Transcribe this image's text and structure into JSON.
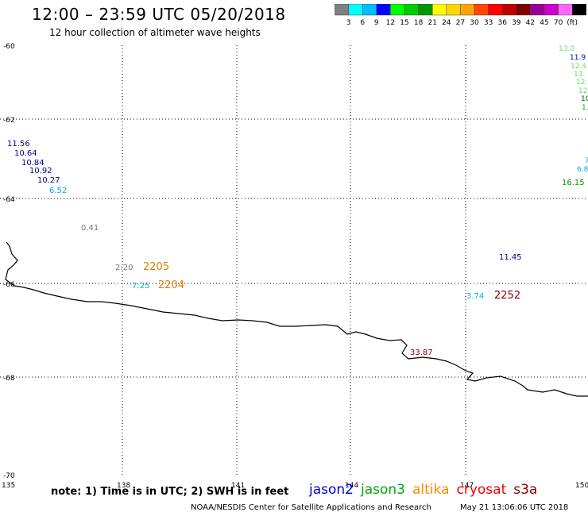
{
  "title": "12:00 – 23:59 UTC 05/20/2018",
  "subtitle": "12 hour collection of altimeter wave heights",
  "legend": {
    "colors": [
      "#808080",
      "#00ffff",
      "#00bfff",
      "#0000ff",
      "#00ff00",
      "#00cc00",
      "#009900",
      "#ffff00",
      "#ffd700",
      "#ffa500",
      "#ff4500",
      "#ff0000",
      "#c00000",
      "#800000",
      "#990099",
      "#cc00cc",
      "#ff66ff",
      "#000000"
    ],
    "labels": [
      "3",
      "6",
      "9",
      "12",
      "15",
      "18",
      "21",
      "24",
      "27",
      "30",
      "33",
      "36",
      "39",
      "42",
      "45",
      "70",
      "(ft)"
    ]
  },
  "axes": {
    "lat_labels": [
      "-60",
      "-62",
      "-64",
      "-66",
      "-68",
      "-70"
    ],
    "lon_labels": [
      "135",
      "138",
      "141",
      "144",
      "147",
      "150"
    ]
  },
  "observations": [
    {
      "text": "13.0",
      "color": "#66dd66"
    },
    {
      "text": "11.9",
      "color": "#0000cc"
    },
    {
      "text": "12.4",
      "color": "#66dd66"
    },
    {
      "text": "13.",
      "color": "#66dd66"
    },
    {
      "text": "12.",
      "color": "#66dd66"
    },
    {
      "text": "12",
      "color": "#66dd66"
    },
    {
      "text": "10",
      "color": "#006600"
    },
    {
      "text": "1.",
      "color": "#00aa00"
    },
    {
      "text": "11.56",
      "color": "#00008b"
    },
    {
      "text": "10.64",
      "color": "#00008b"
    },
    {
      "text": "10.84",
      "color": "#00008b"
    },
    {
      "text": "10.92",
      "color": "#00008b"
    },
    {
      "text": "10.27",
      "color": "#00008b"
    },
    {
      "text": "6.52",
      "color": "#00aadd"
    },
    {
      "text": "7",
      "color": "#00aadd"
    },
    {
      "text": "6.8",
      "color": "#00aadd"
    },
    {
      "text": "16.15",
      "color": "#009900"
    },
    {
      "text": "0.41",
      "color": "#777777"
    },
    {
      "text": "2:20",
      "color": "#777777"
    },
    {
      "text": "2205",
      "color": "#e08000"
    },
    {
      "text": "7:25",
      "color": "#00aadd"
    },
    {
      "text": "2204",
      "color": "#e08000"
    },
    {
      "text": "11.45",
      "color": "#00008b"
    },
    {
      "text": "3.74",
      "color": "#00aadd"
    },
    {
      "text": "2252",
      "color": "#800000"
    },
    {
      "text": "33.87",
      "color": "#800000"
    }
  ],
  "note": "note: 1) Time is in UTC; 2) SWH is in feet",
  "satellites": [
    {
      "name": "jason2",
      "color": "#0000dd"
    },
    {
      "name": "jason3",
      "color": "#00aa00"
    },
    {
      "name": "altika",
      "color": "#ff8c00"
    },
    {
      "name": "cryosat",
      "color": "#ee0000"
    },
    {
      "name": "s3a",
      "color": "#800000"
    }
  ],
  "credit": "NOAA/NESDIS Center for Satellite Applications and Research",
  "timestamp": "May 21 13:06:06 UTC 2018"
}
